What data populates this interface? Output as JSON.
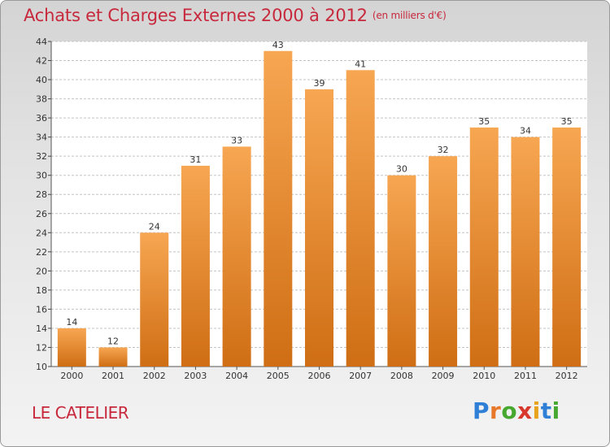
{
  "title": "Achats et Charges Externes 2000 à 2012",
  "unit": "(en milliers d'€)",
  "location": "LE CATELIER",
  "brand": {
    "name": "Proxiti",
    "letters": [
      "P",
      "r",
      "o",
      "x",
      "i",
      "t",
      "i"
    ],
    "letter_colors": [
      "#2f7fd6",
      "#e8782a",
      "#46a82e",
      "#d8382c",
      "#e8a21c",
      "#2f7fd6",
      "#46a82e"
    ]
  },
  "colors": {
    "bar_light": "#f7a652",
    "bar_dark": "#cf6e14",
    "text_red": "#c8283c",
    "grid": "#c4c4c4"
  },
  "chart_data": {
    "type": "bar",
    "categories": [
      "2000",
      "2001",
      "2002",
      "2003",
      "2004",
      "2005",
      "2006",
      "2007",
      "2008",
      "2009",
      "2010",
      "2011",
      "2012"
    ],
    "values": [
      14,
      12,
      24,
      31,
      33,
      43,
      39,
      41,
      30,
      32,
      35,
      34,
      35
    ],
    "ylim": [
      10,
      44
    ],
    "yticks": [
      10,
      12,
      14,
      16,
      18,
      20,
      22,
      24,
      26,
      28,
      30,
      32,
      34,
      36,
      38,
      40,
      42,
      44
    ],
    "grid": true,
    "legend": "none"
  }
}
